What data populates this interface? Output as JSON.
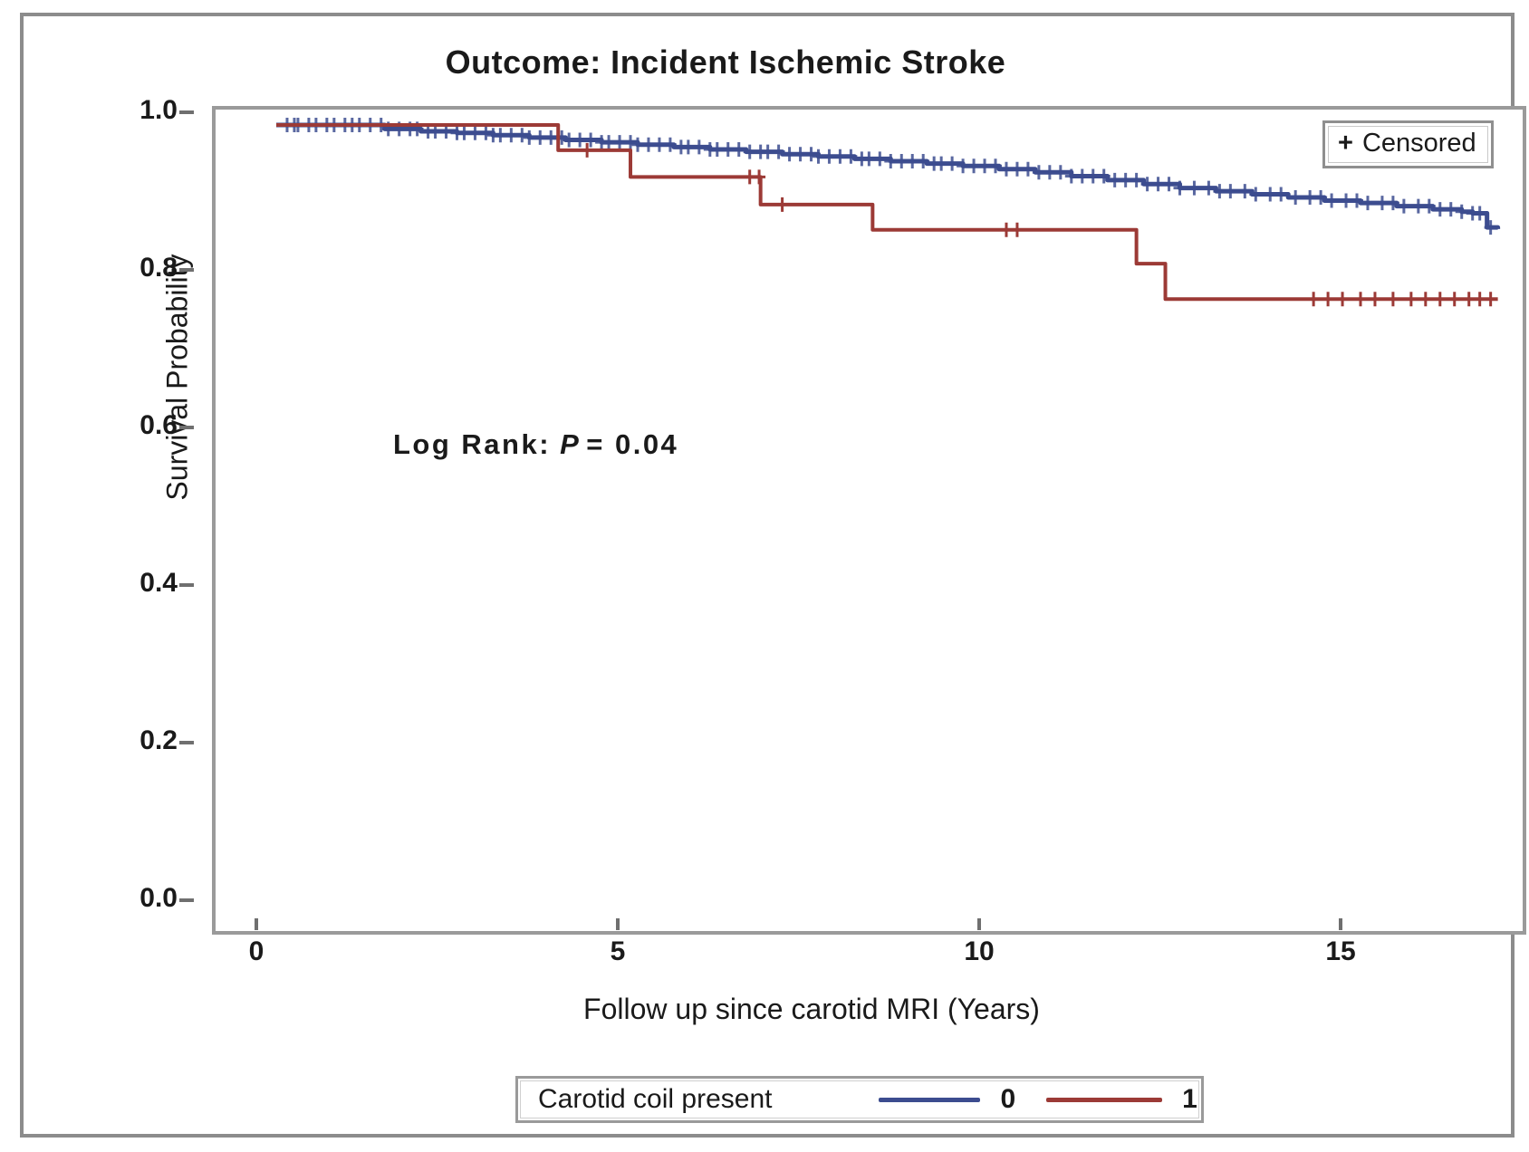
{
  "figure": {
    "title": "Outcome: Incident Ischemic Stroke"
  },
  "chart_data": {
    "type": "line",
    "subtype": "kaplan-meier-step",
    "title": "Outcome: Incident Ischemic Stroke",
    "xlabel": "Follow up since carotid MRI (Years)",
    "ylabel": "Survival Probability",
    "xlim": [
      0,
      17.2
    ],
    "ylim": [
      0.0,
      1.0
    ],
    "grid": false,
    "x_ticks": [
      {
        "label": "0",
        "v": 0
      },
      {
        "label": "5",
        "v": 5
      },
      {
        "label": "10",
        "v": 10
      },
      {
        "label": "15",
        "v": 15
      }
    ],
    "y_ticks": [
      {
        "label": "1.0",
        "v": 1.0
      },
      {
        "label": "0.8",
        "v": 0.8
      },
      {
        "label": "0.6",
        "v": 0.6
      },
      {
        "label": "0.4",
        "v": 0.4
      },
      {
        "label": "0.2",
        "v": 0.2
      },
      {
        "label": "0.0",
        "v": 0.0
      }
    ],
    "annotation": {
      "prefix": "Log Rank:",
      "stat": "P",
      "suffix": "= 0.04"
    },
    "censored_legend": {
      "symbol": "+",
      "label": "Censored",
      "position": "top-right"
    },
    "group_legend": {
      "title": "Carotid coil present",
      "entries": [
        {
          "label": "0",
          "color": "#3c4c8f"
        },
        {
          "label": "1",
          "color": "#9c3a36"
        }
      ],
      "position": "bottom-center"
    },
    "colors": {
      "group0": "#3c4c8f",
      "group1": "#9c3a36",
      "frame": "#9a9a9a",
      "text": "#1a1a1a"
    },
    "series": [
      {
        "name": "0",
        "color": "#3c4c8f",
        "points": [
          [
            0,
            1.0
          ],
          [
            1.5,
            0.995
          ],
          [
            2.0,
            0.992
          ],
          [
            2.5,
            0.99
          ],
          [
            3.0,
            0.987
          ],
          [
            3.5,
            0.984
          ],
          [
            4.0,
            0.981
          ],
          [
            4.5,
            0.978
          ],
          [
            5.0,
            0.975
          ],
          [
            5.5,
            0.972
          ],
          [
            6.0,
            0.969
          ],
          [
            6.5,
            0.966
          ],
          [
            7.0,
            0.963
          ],
          [
            7.5,
            0.96
          ],
          [
            8.0,
            0.957
          ],
          [
            8.5,
            0.954
          ],
          [
            9.0,
            0.951
          ],
          [
            9.5,
            0.948
          ],
          [
            10.0,
            0.944
          ],
          [
            10.5,
            0.94
          ],
          [
            11.0,
            0.935
          ],
          [
            11.5,
            0.93
          ],
          [
            12.0,
            0.925
          ],
          [
            12.5,
            0.92
          ],
          [
            13.0,
            0.916
          ],
          [
            13.5,
            0.912
          ],
          [
            14.0,
            0.908
          ],
          [
            14.5,
            0.904
          ],
          [
            15.0,
            0.901
          ],
          [
            15.5,
            0.897
          ],
          [
            16.0,
            0.893
          ],
          [
            16.4,
            0.89
          ],
          [
            16.55,
            0.888
          ],
          [
            16.75,
            0.87
          ],
          [
            16.9,
            0.868
          ]
        ],
        "censor_times": [
          0.15,
          0.25,
          0.3,
          0.45,
          0.55,
          0.7,
          0.8,
          0.95,
          1.05,
          1.15,
          1.3,
          1.45,
          1.55,
          1.7,
          1.85,
          1.95,
          2.1,
          2.2,
          2.35,
          2.5,
          2.6,
          2.75,
          2.9,
          3.0,
          3.1,
          3.25,
          3.4,
          3.5,
          3.65,
          3.8,
          3.95,
          4.05,
          4.2,
          4.35,
          4.5,
          4.6,
          4.75,
          4.9,
          5.0,
          5.15,
          5.3,
          5.45,
          5.6,
          5.7,
          5.85,
          6.0,
          6.1,
          6.25,
          6.4,
          6.55,
          6.7,
          6.8,
          6.95,
          7.1,
          7.25,
          7.4,
          7.5,
          7.65,
          7.8,
          7.95,
          8.1,
          8.2,
          8.35,
          8.5,
          8.65,
          8.8,
          8.95,
          9.1,
          9.2,
          9.35,
          9.5,
          9.65,
          9.8,
          9.95,
          10.1,
          10.25,
          10.4,
          10.55,
          10.7,
          10.85,
          11.0,
          11.15,
          11.3,
          11.45,
          11.6,
          11.75,
          11.9,
          12.05,
          12.2,
          12.35,
          12.5,
          12.7,
          12.9,
          13.05,
          13.2,
          13.4,
          13.55,
          13.75,
          13.9,
          14.1,
          14.3,
          14.45,
          14.6,
          14.8,
          14.95,
          15.1,
          15.3,
          15.45,
          15.6,
          15.8,
          15.95,
          16.1,
          16.25,
          16.4,
          16.55,
          16.65,
          16.8
        ]
      },
      {
        "name": "1",
        "color": "#9c3a36",
        "points": [
          [
            0,
            1.0
          ],
          [
            3.9,
            0.968
          ],
          [
            4.9,
            0.934
          ],
          [
            6.7,
            0.899
          ],
          [
            8.25,
            0.867
          ],
          [
            11.9,
            0.824
          ],
          [
            12.3,
            0.779
          ],
          [
            16.9,
            0.779
          ]
        ],
        "censor_times": [
          4.3,
          6.55,
          6.68,
          7.0,
          10.1,
          10.25,
          14.35,
          14.55,
          14.75,
          15.0,
          15.2,
          15.45,
          15.7,
          15.9,
          16.1,
          16.3,
          16.5,
          16.65,
          16.8
        ]
      }
    ]
  }
}
